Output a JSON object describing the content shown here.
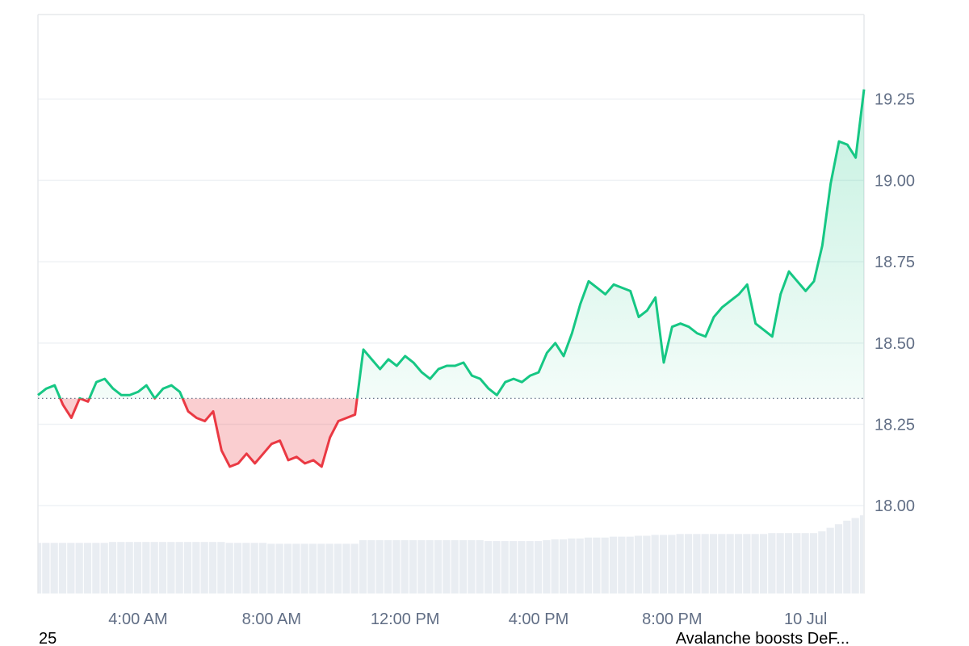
{
  "chart_data": {
    "type": "baseline-line",
    "x": [
      1,
      1.25,
      1.5,
      1.75,
      2,
      2.25,
      2.5,
      2.75,
      3,
      3.25,
      3.5,
      3.75,
      4,
      4.25,
      4.5,
      4.75,
      5,
      5.25,
      5.5,
      5.75,
      6,
      6.25,
      6.5,
      6.75,
      7,
      7.25,
      7.5,
      7.75,
      8,
      8.25,
      8.5,
      8.75,
      9,
      9.25,
      9.5,
      9.75,
      10,
      10.25,
      10.5,
      10.75,
      11,
      11.25,
      11.5,
      11.75,
      12,
      12.25,
      12.5,
      12.75,
      13,
      13.25,
      13.5,
      13.75,
      14,
      14.25,
      14.5,
      14.75,
      15,
      15.25,
      15.5,
      15.75,
      16,
      16.25,
      16.5,
      16.75,
      17,
      17.25,
      17.5,
      17.75,
      18,
      18.25,
      18.5,
      18.75,
      19,
      19.25,
      19.5,
      19.75,
      20,
      20.25,
      20.5,
      20.75,
      21,
      21.25,
      21.5,
      21.75,
      22,
      22.25,
      22.5,
      22.75,
      23,
      23.25,
      23.5,
      23.75,
      24,
      24.25,
      24.5,
      24.75,
      25,
      25.25,
      25.5,
      25.75
    ],
    "values": [
      18.34,
      18.36,
      18.37,
      18.31,
      18.27,
      18.33,
      18.32,
      18.38,
      18.39,
      18.36,
      18.34,
      18.34,
      18.35,
      18.37,
      18.33,
      18.36,
      18.37,
      18.35,
      18.29,
      18.27,
      18.26,
      18.29,
      18.17,
      18.12,
      18.13,
      18.16,
      18.13,
      18.16,
      18.19,
      18.2,
      18.14,
      18.15,
      18.13,
      18.14,
      18.12,
      18.21,
      18.26,
      18.27,
      18.28,
      18.48,
      18.45,
      18.42,
      18.45,
      18.43,
      18.46,
      18.44,
      18.41,
      18.39,
      18.42,
      18.43,
      18.43,
      18.44,
      18.4,
      18.39,
      18.36,
      18.34,
      18.38,
      18.39,
      18.38,
      18.4,
      18.41,
      18.47,
      18.5,
      18.46,
      18.53,
      18.62,
      18.69,
      18.67,
      18.65,
      18.68,
      18.67,
      18.66,
      18.58,
      18.6,
      18.64,
      18.44,
      18.55,
      18.56,
      18.55,
      18.53,
      18.52,
      18.58,
      18.61,
      18.63,
      18.65,
      18.68,
      18.56,
      18.54,
      18.52,
      18.65,
      18.72,
      18.69,
      18.66,
      18.69,
      18.8,
      18.99,
      19.12,
      19.11,
      19.07,
      19.28
    ],
    "volume": [
      57,
      57,
      57,
      57,
      57,
      57,
      57,
      57,
      57,
      58,
      58,
      58,
      58,
      58,
      58,
      58,
      58,
      58,
      58,
      58,
      58,
      58,
      58,
      57,
      57,
      57,
      57,
      57,
      56,
      56,
      56,
      56,
      56,
      56,
      56,
      56,
      56,
      56,
      56,
      60,
      60,
      60,
      60,
      60,
      60,
      60,
      60,
      60,
      60,
      60,
      60,
      60,
      60,
      60,
      59,
      59,
      59,
      59,
      59,
      59,
      59,
      60,
      61,
      61,
      62,
      62,
      63,
      63,
      63,
      64,
      64,
      64,
      65,
      65,
      66,
      66,
      66,
      67,
      67,
      67,
      67,
      67,
      67,
      67,
      67,
      67,
      67,
      67,
      68,
      68,
      68,
      68,
      68,
      68,
      70,
      74,
      78,
      82,
      85,
      88
    ],
    "volume_lim": [
      0,
      100
    ],
    "baseline": 18.33,
    "up_color": "#16c784",
    "down_color": "#ea3943",
    "volume_color": "#e9edf2",
    "xlim": [
      1,
      25.75
    ],
    "ylim": [
      17.73,
      19.51
    ],
    "xticks": [
      {
        "value": 4,
        "label": "4:00 AM"
      },
      {
        "value": 8,
        "label": "8:00 AM"
      },
      {
        "value": 12,
        "label": "12:00 PM"
      },
      {
        "value": 16,
        "label": "4:00 PM"
      },
      {
        "value": 20,
        "label": "8:00 PM"
      },
      {
        "value": 24,
        "label": "10 Jul"
      }
    ],
    "yticks": [
      {
        "value": 18,
        "label": "18.00"
      },
      {
        "value": 18.25,
        "label": "18.25"
      },
      {
        "value": 18.5,
        "label": "18.50"
      },
      {
        "value": 18.75,
        "label": "18.75"
      },
      {
        "value": 19,
        "label": "19.00"
      },
      {
        "value": 19.25,
        "label": "19.25"
      }
    ],
    "grid": true
  },
  "bottom_bar": {
    "left": "25",
    "right": "Avalanche boosts DeF..."
  }
}
